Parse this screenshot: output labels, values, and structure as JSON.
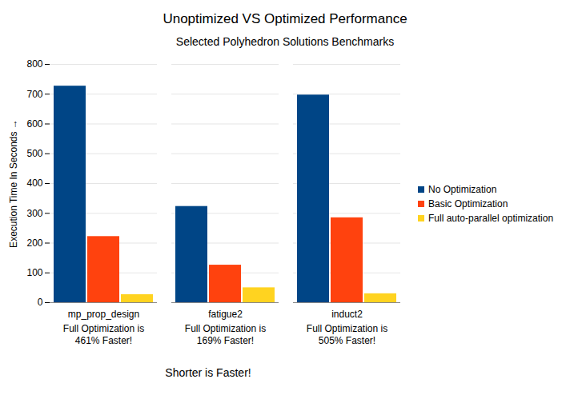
{
  "chart_data": {
    "type": "bar",
    "title": "Unoptimized VS Optimized Performance",
    "subtitle": "Selected Polyhedron Solutions Benchmarks",
    "y_label": "Execution Time In Seconds",
    "caption": "Shorter is Faster!",
    "categories": [
      "mp_prop_design",
      "fatigue2",
      "induct2"
    ],
    "series": [
      {
        "name": "No Optimization",
        "color": "#004586",
        "values": [
          727,
          323,
          697
        ]
      },
      {
        "name": "Basic Optimization",
        "color": "#ff420e",
        "values": [
          222,
          126,
          285
        ]
      },
      {
        "name": "Full auto-parallel optimization",
        "color": "#ffd320",
        "values": [
          27,
          50,
          30
        ]
      }
    ],
    "annotations": [
      {
        "category": "mp_prop_design",
        "text": "Full Optimization is 461% Faster!"
      },
      {
        "category": "fatigue2",
        "text": "Full Optimization is 169% Faster!"
      },
      {
        "category": "induct2",
        "text": "Full Optimization is 505% Faster!"
      }
    ],
    "ylim": [
      0,
      800
    ],
    "yticks": [
      0,
      100,
      200,
      300,
      400,
      500,
      600,
      700,
      800
    ],
    "grid": true,
    "legend": "right"
  }
}
